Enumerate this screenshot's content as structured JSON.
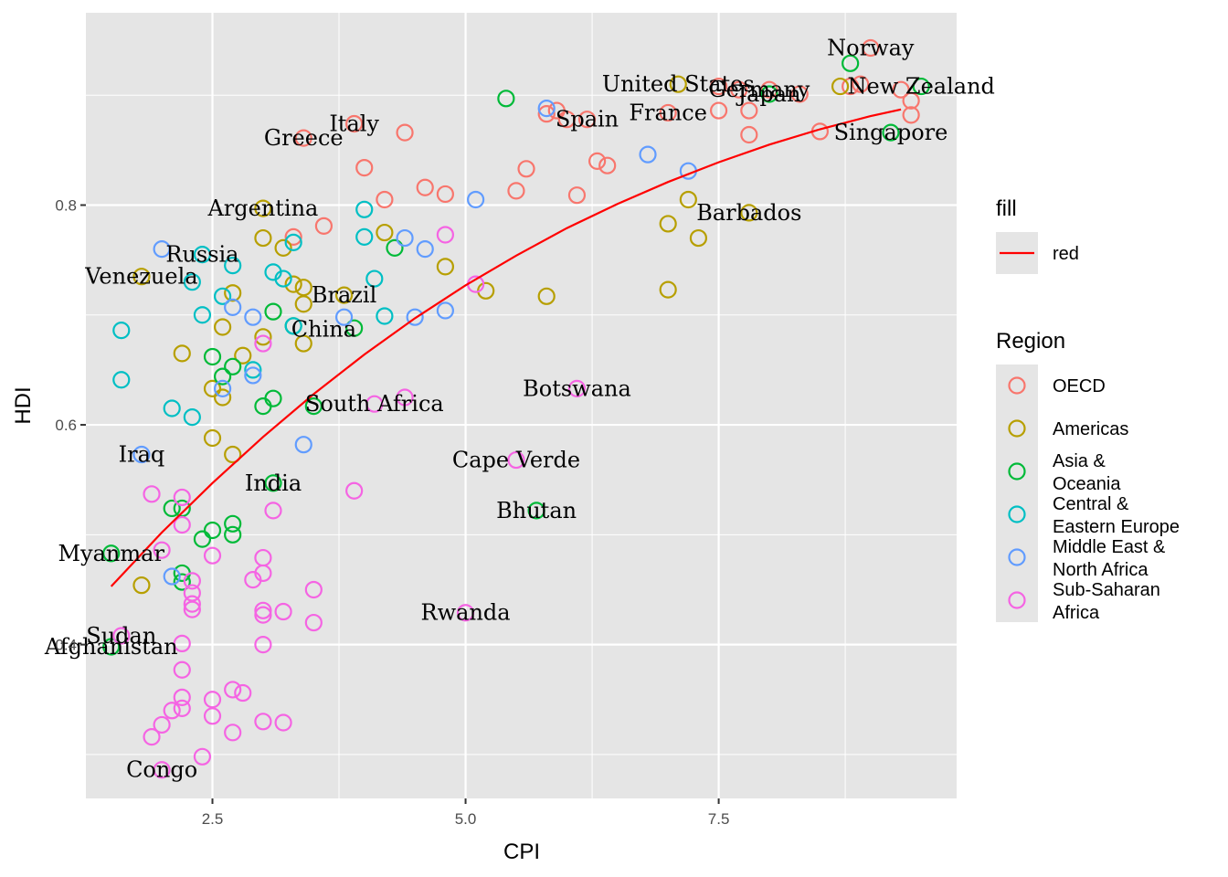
{
  "chart_data": {
    "type": "scatter",
    "xlabel": "CPI",
    "ylabel": "HDI",
    "xlim": [
      1.25,
      9.85
    ],
    "ylim": [
      0.26,
      0.975
    ],
    "x_ticks": [
      2.5,
      5.0,
      7.5
    ],
    "x_tick_labels": [
      "2.5",
      "5.0",
      "7.5"
    ],
    "y_ticks": [
      0.4,
      0.6,
      0.8
    ],
    "y_tick_labels": [
      "0.4",
      "0.6",
      "0.8"
    ],
    "grid": true,
    "background": "#e5e5e5",
    "legends": {
      "line": {
        "title": "fill",
        "label": "red",
        "color": "#ff0000"
      },
      "points": {
        "title": "Region",
        "position": "right",
        "entries": [
          {
            "key": "OECD",
            "lines": [
              "OECD"
            ],
            "color": "#F8766D"
          },
          {
            "key": "Americas",
            "lines": [
              "Americas"
            ],
            "color": "#B79F00"
          },
          {
            "key": "Asia & Oceania",
            "lines": [
              "Asia &",
              "Oceania"
            ],
            "color": "#00BA38"
          },
          {
            "key": "Central & Eastern Europe",
            "lines": [
              "Central &",
              "Eastern Europe"
            ],
            "color": "#00BFC4"
          },
          {
            "key": "Middle East & North Africa",
            "lines": [
              "Middle East &",
              "North Africa"
            ],
            "color": "#619CFF"
          },
          {
            "key": "Sub-Saharan Africa",
            "lines": [
              "Sub-Saharan",
              "Africa"
            ],
            "color": "#F564E3"
          }
        ]
      }
    },
    "trend_line": {
      "name": "red",
      "color": "#ff0000",
      "points": [
        [
          1.5,
          0.453
        ],
        [
          2.0,
          0.502
        ],
        [
          2.5,
          0.547
        ],
        [
          3.0,
          0.589
        ],
        [
          3.5,
          0.628
        ],
        [
          4.0,
          0.664
        ],
        [
          4.5,
          0.697
        ],
        [
          5.0,
          0.727
        ],
        [
          5.5,
          0.754
        ],
        [
          6.0,
          0.779
        ],
        [
          6.5,
          0.801
        ],
        [
          7.0,
          0.821
        ],
        [
          7.5,
          0.839
        ],
        [
          8.0,
          0.855
        ],
        [
          8.5,
          0.869
        ],
        [
          9.0,
          0.881
        ],
        [
          9.3,
          0.887
        ]
      ]
    },
    "series": [
      {
        "name": "OECD",
        "color": "#F8766D",
        "points": [
          [
            9.0,
            0.943
          ],
          [
            8.8,
            0.908
          ],
          [
            8.9,
            0.91
          ],
          [
            9.3,
            0.905
          ],
          [
            9.4,
            0.895
          ],
          [
            9.4,
            0.882
          ],
          [
            8.0,
            0.905
          ],
          [
            7.7,
            0.905
          ],
          [
            7.5,
            0.908
          ],
          [
            8.3,
            0.901
          ],
          [
            7.5,
            0.886
          ],
          [
            7.8,
            0.886
          ],
          [
            7.0,
            0.884
          ],
          [
            7.8,
            0.864
          ],
          [
            8.5,
            0.867
          ],
          [
            6.2,
            0.878
          ],
          [
            6.0,
            0.878
          ],
          [
            5.9,
            0.886
          ],
          [
            5.8,
            0.883
          ],
          [
            3.9,
            0.874
          ],
          [
            4.4,
            0.866
          ],
          [
            3.4,
            0.861
          ],
          [
            6.3,
            0.84
          ],
          [
            6.4,
            0.836
          ],
          [
            5.6,
            0.833
          ],
          [
            4.0,
            0.834
          ],
          [
            4.6,
            0.816
          ],
          [
            4.8,
            0.81
          ],
          [
            5.5,
            0.813
          ],
          [
            6.1,
            0.809
          ],
          [
            4.2,
            0.805
          ],
          [
            3.6,
            0.781
          ],
          [
            3.3,
            0.771
          ]
        ]
      },
      {
        "name": "Americas",
        "color": "#B79F00",
        "points": [
          [
            7.1,
            0.91
          ],
          [
            8.7,
            0.908
          ],
          [
            7.2,
            0.805
          ],
          [
            7.0,
            0.783
          ],
          [
            7.8,
            0.793
          ],
          [
            7.3,
            0.77
          ],
          [
            3.0,
            0.797
          ],
          [
            3.0,
            0.77
          ],
          [
            3.2,
            0.761
          ],
          [
            4.2,
            0.775
          ],
          [
            4.8,
            0.744
          ],
          [
            1.8,
            0.735
          ],
          [
            2.7,
            0.72
          ],
          [
            3.3,
            0.728
          ],
          [
            3.4,
            0.725
          ],
          [
            3.8,
            0.718
          ],
          [
            3.4,
            0.71
          ],
          [
            5.2,
            0.722
          ],
          [
            5.8,
            0.717
          ],
          [
            7.0,
            0.723
          ],
          [
            2.6,
            0.689
          ],
          [
            3.0,
            0.68
          ],
          [
            3.4,
            0.674
          ],
          [
            2.2,
            0.665
          ],
          [
            2.8,
            0.663
          ],
          [
            2.5,
            0.633
          ],
          [
            2.6,
            0.625
          ],
          [
            2.5,
            0.588
          ],
          [
            2.7,
            0.573
          ],
          [
            1.8,
            0.454
          ]
        ]
      },
      {
        "name": "Asia & Oceania",
        "color": "#00BA38",
        "points": [
          [
            8.8,
            0.929
          ],
          [
            9.5,
            0.908
          ],
          [
            9.2,
            0.866
          ],
          [
            8.0,
            0.901
          ],
          [
            5.4,
            0.897
          ],
          [
            4.3,
            0.761
          ],
          [
            3.1,
            0.703
          ],
          [
            3.3,
            0.69
          ],
          [
            3.9,
            0.688
          ],
          [
            2.5,
            0.662
          ],
          [
            2.7,
            0.653
          ],
          [
            2.6,
            0.644
          ],
          [
            3.1,
            0.624
          ],
          [
            3.0,
            0.617
          ],
          [
            3.5,
            0.617
          ],
          [
            5.7,
            0.522
          ],
          [
            3.1,
            0.547
          ],
          [
            2.7,
            0.51
          ],
          [
            2.7,
            0.5
          ],
          [
            2.5,
            0.504
          ],
          [
            2.4,
            0.496
          ],
          [
            2.1,
            0.524
          ],
          [
            2.2,
            0.524
          ],
          [
            1.5,
            0.483
          ],
          [
            2.2,
            0.465
          ],
          [
            2.2,
            0.457
          ],
          [
            1.5,
            0.398
          ]
        ]
      },
      {
        "name": "Central & Eastern Europe",
        "color": "#00BFC4",
        "points": [
          [
            4.0,
            0.796
          ],
          [
            4.0,
            0.771
          ],
          [
            3.3,
            0.766
          ],
          [
            2.4,
            0.755
          ],
          [
            2.7,
            0.745
          ],
          [
            3.1,
            0.739
          ],
          [
            3.2,
            0.733
          ],
          [
            2.3,
            0.73
          ],
          [
            2.6,
            0.717
          ],
          [
            4.1,
            0.733
          ],
          [
            1.6,
            0.686
          ],
          [
            2.4,
            0.7
          ],
          [
            4.2,
            0.699
          ],
          [
            3.3,
            0.69
          ],
          [
            2.9,
            0.65
          ],
          [
            1.6,
            0.641
          ],
          [
            2.1,
            0.615
          ],
          [
            2.3,
            0.607
          ]
        ]
      },
      {
        "name": "Middle East & North Africa",
        "color": "#619CFF",
        "points": [
          [
            5.8,
            0.888
          ],
          [
            6.8,
            0.846
          ],
          [
            7.2,
            0.831
          ],
          [
            5.1,
            0.805
          ],
          [
            4.4,
            0.77
          ],
          [
            4.6,
            0.76
          ],
          [
            2.0,
            0.76
          ],
          [
            2.7,
            0.707
          ],
          [
            2.9,
            0.698
          ],
          [
            3.8,
            0.698
          ],
          [
            4.5,
            0.698
          ],
          [
            4.8,
            0.704
          ],
          [
            2.9,
            0.645
          ],
          [
            2.6,
            0.633
          ],
          [
            3.4,
            0.582
          ],
          [
            1.8,
            0.573
          ],
          [
            2.1,
            0.462
          ]
        ]
      },
      {
        "name": "Sub-Saharan Africa",
        "color": "#F564E3",
        "points": [
          [
            4.8,
            0.773
          ],
          [
            5.1,
            0.728
          ],
          [
            3.0,
            0.674
          ],
          [
            6.1,
            0.633
          ],
          [
            4.1,
            0.619
          ],
          [
            4.4,
            0.625
          ],
          [
            5.5,
            0.568
          ],
          [
            1.9,
            0.537
          ],
          [
            2.2,
            0.534
          ],
          [
            3.9,
            0.54
          ],
          [
            3.1,
            0.522
          ],
          [
            2.2,
            0.509
          ],
          [
            2.0,
            0.486
          ],
          [
            2.5,
            0.481
          ],
          [
            3.0,
            0.479
          ],
          [
            3.0,
            0.465
          ],
          [
            2.9,
            0.459
          ],
          [
            2.3,
            0.458
          ],
          [
            2.3,
            0.447
          ],
          [
            2.3,
            0.437
          ],
          [
            2.3,
            0.432
          ],
          [
            3.5,
            0.45
          ],
          [
            3.0,
            0.431
          ],
          [
            3.0,
            0.427
          ],
          [
            3.2,
            0.43
          ],
          [
            3.5,
            0.42
          ],
          [
            5.0,
            0.429
          ],
          [
            1.6,
            0.408
          ],
          [
            2.2,
            0.401
          ],
          [
            3.0,
            0.4
          ],
          [
            2.2,
            0.377
          ],
          [
            2.7,
            0.359
          ],
          [
            2.8,
            0.356
          ],
          [
            2.2,
            0.352
          ],
          [
            2.5,
            0.35
          ],
          [
            2.2,
            0.342
          ],
          [
            2.1,
            0.34
          ],
          [
            2.5,
            0.335
          ],
          [
            3.0,
            0.33
          ],
          [
            3.2,
            0.329
          ],
          [
            2.0,
            0.327
          ],
          [
            1.9,
            0.316
          ],
          [
            2.7,
            0.32
          ],
          [
            2.4,
            0.298
          ],
          [
            2.0,
            0.286
          ]
        ]
      }
    ],
    "point_labels": [
      {
        "text": "Norway",
        "x": 9.0,
        "y": 0.943
      },
      {
        "text": "United States",
        "x": 7.1,
        "y": 0.91
      },
      {
        "text": "Germany",
        "x": 7.9,
        "y": 0.905
      },
      {
        "text": "Japan",
        "x": 8.0,
        "y": 0.901
      },
      {
        "text": "New Zealand",
        "x": 9.5,
        "y": 0.908
      },
      {
        "text": "France",
        "x": 7.0,
        "y": 0.884
      },
      {
        "text": "Spain",
        "x": 6.2,
        "y": 0.878
      },
      {
        "text": "Italy",
        "x": 3.9,
        "y": 0.874
      },
      {
        "text": "Greece",
        "x": 3.4,
        "y": 0.861
      },
      {
        "text": "Singapore",
        "x": 9.2,
        "y": 0.866
      },
      {
        "text": "Argentina",
        "x": 3.0,
        "y": 0.797
      },
      {
        "text": "Barbados",
        "x": 7.8,
        "y": 0.793
      },
      {
        "text": "Russia",
        "x": 2.4,
        "y": 0.755
      },
      {
        "text": "Venezuela",
        "x": 1.8,
        "y": 0.735
      },
      {
        "text": "Brazil",
        "x": 3.8,
        "y": 0.718
      },
      {
        "text": "China",
        "x": 3.6,
        "y": 0.687
      },
      {
        "text": "Botswana",
        "x": 6.1,
        "y": 0.633
      },
      {
        "text": "South Africa",
        "x": 4.1,
        "y": 0.619
      },
      {
        "text": "Iraq",
        "x": 1.8,
        "y": 0.573
      },
      {
        "text": "Cape Verde",
        "x": 5.5,
        "y": 0.568
      },
      {
        "text": "India",
        "x": 3.1,
        "y": 0.547
      },
      {
        "text": "Bhutan",
        "x": 5.7,
        "y": 0.522
      },
      {
        "text": "Myanmar",
        "x": 1.5,
        "y": 0.483
      },
      {
        "text": "Rwanda",
        "x": 5.0,
        "y": 0.429
      },
      {
        "text": "Sudan",
        "x": 1.6,
        "y": 0.408
      },
      {
        "text": "Afghanistan",
        "x": 1.5,
        "y": 0.398
      },
      {
        "text": "Congo",
        "x": 2.0,
        "y": 0.286
      }
    ]
  }
}
